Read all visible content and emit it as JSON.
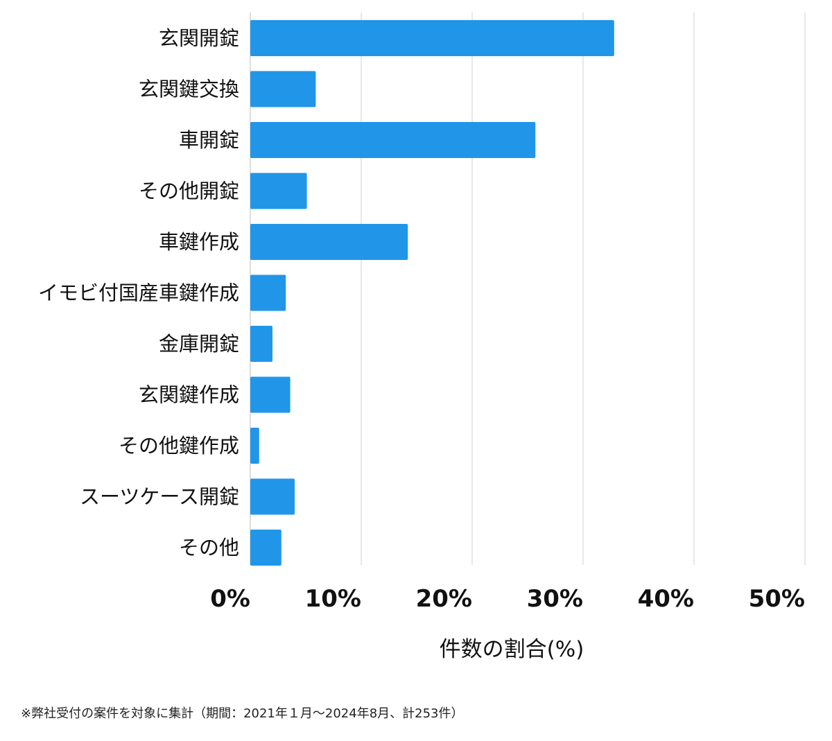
{
  "chart_data": {
    "type": "bar",
    "orientation": "horizontal",
    "categories": [
      "玄関開錠",
      "玄関鍵交換",
      "車開錠",
      "その他開錠",
      "車鍵作成",
      "イモビ付国産車鍵作成",
      "金庫開錠",
      "玄関鍵作成",
      "その他鍵作成",
      "スーツケース開錠",
      "その他"
    ],
    "values": [
      32.8,
      5.9,
      25.7,
      5.1,
      14.2,
      3.2,
      2.0,
      3.6,
      0.8,
      4.0,
      2.8
    ],
    "xlabel": "件数の割合(%)",
    "ylabel": "",
    "xlim": [
      0,
      50
    ],
    "xticks": [
      0,
      10,
      20,
      30,
      40,
      50
    ],
    "xtick_labels": [
      "0%",
      "10%",
      "20%",
      "30%",
      "40%",
      "50%"
    ],
    "grid": "vertical",
    "bar_color": "#2196E8",
    "grid_color": "#D0D0D0"
  },
  "footnote": "※弊社受付の案件を対象に集計（期間：2021年１月〜2024年8月、計253件）"
}
